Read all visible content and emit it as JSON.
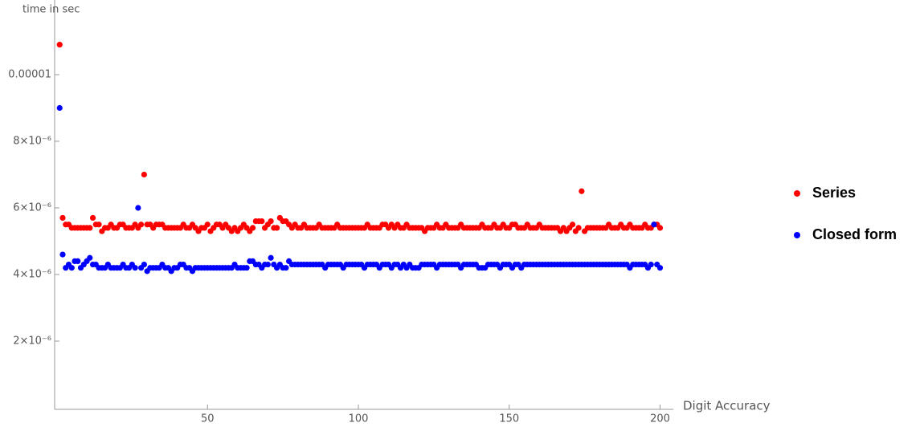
{
  "chart_data": {
    "type": "scatter",
    "y_axis_label": "time in sec",
    "x_axis_label": "Digit Accuracy",
    "xlim": [
      0,
      204
    ],
    "ylim": [
      0,
      1.2e-05
    ],
    "xticks": [
      50,
      100,
      150,
      200
    ],
    "yticks": [
      {
        "value": 2e-06,
        "label": "2×10⁻⁶"
      },
      {
        "value": 4e-06,
        "label": "4×10⁻⁶"
      },
      {
        "value": 6e-06,
        "label": "6×10⁻⁶"
      },
      {
        "value": 8e-06,
        "label": "8×10⁻⁶"
      },
      1e-05
    ],
    "x": [
      1,
      2,
      3,
      4,
      5,
      6,
      7,
      8,
      9,
      10,
      11,
      12,
      13,
      14,
      15,
      16,
      17,
      18,
      19,
      20,
      21,
      22,
      23,
      24,
      25,
      26,
      27,
      28,
      29,
      30,
      31,
      32,
      33,
      34,
      35,
      36,
      37,
      38,
      39,
      40,
      41,
      42,
      43,
      44,
      45,
      46,
      47,
      48,
      49,
      50,
      51,
      52,
      53,
      54,
      55,
      56,
      57,
      58,
      59,
      60,
      61,
      62,
      63,
      64,
      65,
      66,
      67,
      68,
      69,
      70,
      71,
      72,
      73,
      74,
      75,
      76,
      77,
      78,
      79,
      80,
      81,
      82,
      83,
      84,
      85,
      86,
      87,
      88,
      89,
      90,
      91,
      92,
      93,
      94,
      95,
      96,
      97,
      98,
      99,
      100,
      101,
      102,
      103,
      104,
      105,
      106,
      107,
      108,
      109,
      110,
      111,
      112,
      113,
      114,
      115,
      116,
      117,
      118,
      119,
      120,
      121,
      122,
      123,
      124,
      125,
      126,
      127,
      128,
      129,
      130,
      131,
      132,
      133,
      134,
      135,
      136,
      137,
      138,
      139,
      140,
      141,
      142,
      143,
      144,
      145,
      146,
      147,
      148,
      149,
      150,
      151,
      152,
      153,
      154,
      155,
      156,
      157,
      158,
      159,
      160,
      161,
      162,
      163,
      164,
      165,
      166,
      167,
      168,
      169,
      170,
      171,
      172,
      173,
      174,
      175,
      176,
      177,
      178,
      179,
      180,
      181,
      182,
      183,
      184,
      185,
      186,
      187,
      188,
      189,
      190,
      191,
      192,
      193,
      194,
      195,
      196,
      197,
      198,
      199,
      200
    ],
    "series": [
      {
        "name": "Series",
        "color": "#ff0000",
        "values": [
          1.09e-05,
          5.7e-06,
          5.5e-06,
          5.5e-06,
          5.4e-06,
          5.4e-06,
          5.4e-06,
          5.4e-06,
          5.4e-06,
          5.4e-06,
          5.4e-06,
          5.7e-06,
          5.5e-06,
          5.5e-06,
          5.3e-06,
          5.4e-06,
          5.4e-06,
          5.5e-06,
          5.4e-06,
          5.4e-06,
          5.5e-06,
          5.5e-06,
          5.4e-06,
          5.4e-06,
          5.4e-06,
          5.5e-06,
          5.4e-06,
          5.5e-06,
          7e-06,
          5.5e-06,
          5.5e-06,
          5.4e-06,
          5.5e-06,
          5.5e-06,
          5.5e-06,
          5.4e-06,
          5.4e-06,
          5.4e-06,
          5.4e-06,
          5.4e-06,
          5.4e-06,
          5.5e-06,
          5.4e-06,
          5.4e-06,
          5.5e-06,
          5.4e-06,
          5.3e-06,
          5.4e-06,
          5.4e-06,
          5.5e-06,
          5.3e-06,
          5.4e-06,
          5.5e-06,
          5.5e-06,
          5.4e-06,
          5.5e-06,
          5.4e-06,
          5.3e-06,
          5.4e-06,
          5.3e-06,
          5.4e-06,
          5.5e-06,
          5.4e-06,
          5.3e-06,
          5.4e-06,
          5.6e-06,
          5.6e-06,
          5.6e-06,
          5.4e-06,
          5.5e-06,
          5.6e-06,
          5.4e-06,
          5.4e-06,
          5.7e-06,
          5.6e-06,
          5.6e-06,
          5.5e-06,
          5.4e-06,
          5.5e-06,
          5.4e-06,
          5.4e-06,
          5.5e-06,
          5.4e-06,
          5.4e-06,
          5.4e-06,
          5.4e-06,
          5.5e-06,
          5.4e-06,
          5.4e-06,
          5.4e-06,
          5.4e-06,
          5.4e-06,
          5.5e-06,
          5.4e-06,
          5.4e-06,
          5.4e-06,
          5.4e-06,
          5.4e-06,
          5.4e-06,
          5.4e-06,
          5.4e-06,
          5.4e-06,
          5.5e-06,
          5.4e-06,
          5.4e-06,
          5.4e-06,
          5.4e-06,
          5.5e-06,
          5.5e-06,
          5.4e-06,
          5.5e-06,
          5.4e-06,
          5.5e-06,
          5.4e-06,
          5.4e-06,
          5.5e-06,
          5.4e-06,
          5.4e-06,
          5.4e-06,
          5.4e-06,
          5.4e-06,
          5.3e-06,
          5.4e-06,
          5.4e-06,
          5.4e-06,
          5.5e-06,
          5.4e-06,
          5.4e-06,
          5.5e-06,
          5.4e-06,
          5.4e-06,
          5.4e-06,
          5.4e-06,
          5.5e-06,
          5.4e-06,
          5.4e-06,
          5.4e-06,
          5.4e-06,
          5.4e-06,
          5.4e-06,
          5.5e-06,
          5.4e-06,
          5.4e-06,
          5.4e-06,
          5.5e-06,
          5.4e-06,
          5.4e-06,
          5.5e-06,
          5.4e-06,
          5.4e-06,
          5.5e-06,
          5.5e-06,
          5.4e-06,
          5.4e-06,
          5.4e-06,
          5.5e-06,
          5.4e-06,
          5.4e-06,
          5.4e-06,
          5.5e-06,
          5.4e-06,
          5.4e-06,
          5.4e-06,
          5.4e-06,
          5.4e-06,
          5.4e-06,
          5.3e-06,
          5.4e-06,
          5.3e-06,
          5.4e-06,
          5.5e-06,
          5.3e-06,
          5.4e-06,
          6.5e-06,
          5.3e-06,
          5.4e-06,
          5.4e-06,
          5.4e-06,
          5.4e-06,
          5.4e-06,
          5.4e-06,
          5.4e-06,
          5.5e-06,
          5.4e-06,
          5.4e-06,
          5.4e-06,
          5.5e-06,
          5.4e-06,
          5.4e-06,
          5.5e-06,
          5.4e-06,
          5.4e-06,
          5.4e-06,
          5.4e-06,
          5.5e-06,
          5.4e-06,
          5.4e-06,
          5.5e-06,
          5.5e-06,
          5.4e-06
        ]
      },
      {
        "name": "Closed form",
        "color": "#0000ff",
        "values": [
          9e-06,
          4.6e-06,
          4.2e-06,
          4.3e-06,
          4.2e-06,
          4.4e-06,
          4.4e-06,
          4.2e-06,
          4.3e-06,
          4.4e-06,
          4.5e-06,
          4.3e-06,
          4.3e-06,
          4.2e-06,
          4.2e-06,
          4.2e-06,
          4.3e-06,
          4.2e-06,
          4.2e-06,
          4.2e-06,
          4.2e-06,
          4.3e-06,
          4.2e-06,
          4.2e-06,
          4.3e-06,
          4.2e-06,
          6e-06,
          4.2e-06,
          4.3e-06,
          4.1e-06,
          4.2e-06,
          4.2e-06,
          4.2e-06,
          4.2e-06,
          4.3e-06,
          4.2e-06,
          4.2e-06,
          4.1e-06,
          4.2e-06,
          4.2e-06,
          4.3e-06,
          4.3e-06,
          4.2e-06,
          4.2e-06,
          4.1e-06,
          4.2e-06,
          4.2e-06,
          4.2e-06,
          4.2e-06,
          4.2e-06,
          4.2e-06,
          4.2e-06,
          4.2e-06,
          4.2e-06,
          4.2e-06,
          4.2e-06,
          4.2e-06,
          4.2e-06,
          4.3e-06,
          4.2e-06,
          4.2e-06,
          4.2e-06,
          4.2e-06,
          4.4e-06,
          4.4e-06,
          4.3e-06,
          4.3e-06,
          4.2e-06,
          4.3e-06,
          4.3e-06,
          4.5e-06,
          4.3e-06,
          4.2e-06,
          4.3e-06,
          4.2e-06,
          4.2e-06,
          4.4e-06,
          4.3e-06,
          4.3e-06,
          4.3e-06,
          4.3e-06,
          4.3e-06,
          4.3e-06,
          4.3e-06,
          4.3e-06,
          4.3e-06,
          4.3e-06,
          4.3e-06,
          4.2e-06,
          4.3e-06,
          4.3e-06,
          4.3e-06,
          4.3e-06,
          4.3e-06,
          4.2e-06,
          4.3e-06,
          4.3e-06,
          4.3e-06,
          4.3e-06,
          4.3e-06,
          4.3e-06,
          4.2e-06,
          4.3e-06,
          4.3e-06,
          4.3e-06,
          4.3e-06,
          4.2e-06,
          4.3e-06,
          4.3e-06,
          4.3e-06,
          4.2e-06,
          4.3e-06,
          4.3e-06,
          4.2e-06,
          4.3e-06,
          4.2e-06,
          4.3e-06,
          4.2e-06,
          4.2e-06,
          4.2e-06,
          4.3e-06,
          4.3e-06,
          4.3e-06,
          4.3e-06,
          4.3e-06,
          4.2e-06,
          4.3e-06,
          4.3e-06,
          4.3e-06,
          4.3e-06,
          4.3e-06,
          4.3e-06,
          4.3e-06,
          4.2e-06,
          4.3e-06,
          4.3e-06,
          4.3e-06,
          4.3e-06,
          4.3e-06,
          4.2e-06,
          4.2e-06,
          4.2e-06,
          4.3e-06,
          4.3e-06,
          4.3e-06,
          4.3e-06,
          4.2e-06,
          4.3e-06,
          4.3e-06,
          4.3e-06,
          4.2e-06,
          4.3e-06,
          4.3e-06,
          4.2e-06,
          4.3e-06,
          4.3e-06,
          4.3e-06,
          4.3e-06,
          4.3e-06,
          4.3e-06,
          4.3e-06,
          4.3e-06,
          4.3e-06,
          4.3e-06,
          4.3e-06,
          4.3e-06,
          4.3e-06,
          4.3e-06,
          4.3e-06,
          4.3e-06,
          4.3e-06,
          4.3e-06,
          4.3e-06,
          4.3e-06,
          4.3e-06,
          4.3e-06,
          4.3e-06,
          4.3e-06,
          4.3e-06,
          4.3e-06,
          4.3e-06,
          4.3e-06,
          4.3e-06,
          4.3e-06,
          4.3e-06,
          4.3e-06,
          4.3e-06,
          4.3e-06,
          4.3e-06,
          4.2e-06,
          4.3e-06,
          4.3e-06,
          4.3e-06,
          4.3e-06,
          4.3e-06,
          4.2e-06,
          4.3e-06,
          5.5e-06,
          4.3e-06,
          4.2e-06
        ]
      }
    ]
  }
}
